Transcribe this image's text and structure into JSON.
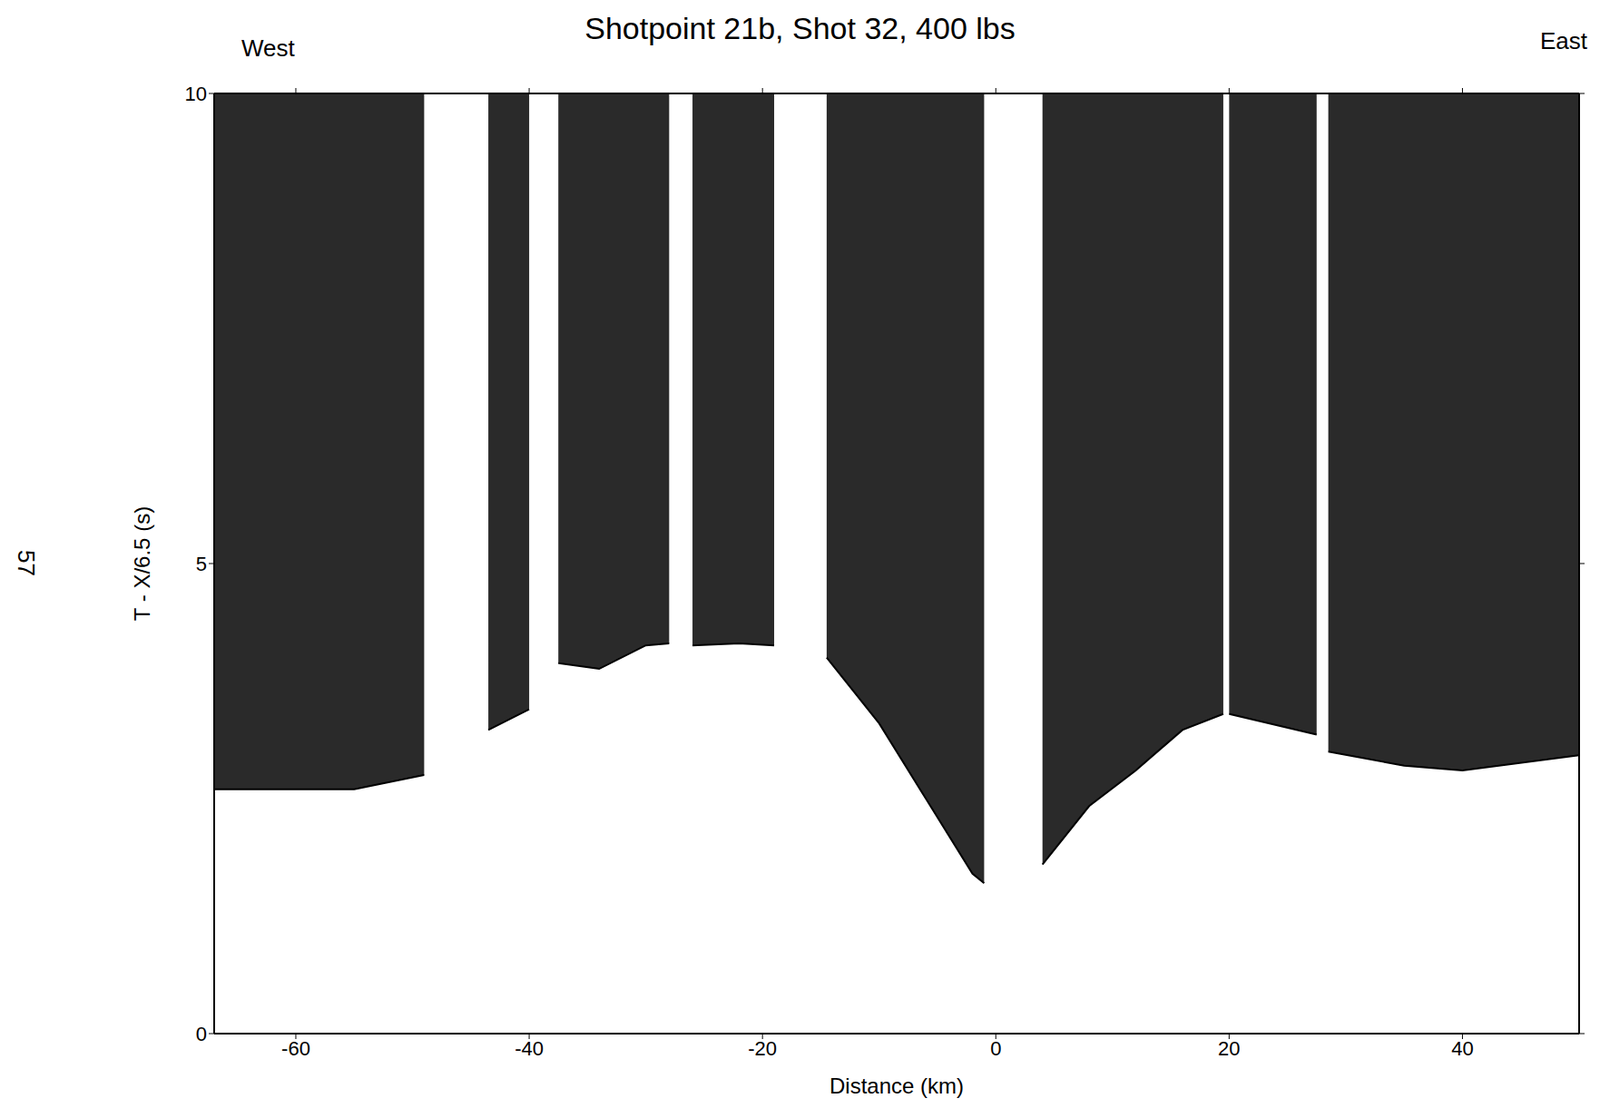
{
  "chart_data": {
    "type": "area",
    "title": "Shotpoint 21b, Shot 32, 400 lbs",
    "annotations": [
      "West",
      "East",
      "57"
    ],
    "x_label": "Distance (km)",
    "y_label": "T - X/6.5 (s)",
    "x": [
      -67,
      -60,
      -55,
      -49,
      -46,
      -43.5,
      -40,
      -38.5,
      -37.5,
      -34,
      -30,
      -28,
      -27,
      -26,
      -22,
      -19,
      -17,
      -14.5,
      -10,
      -6,
      -2,
      -1,
      1.5,
      4,
      8,
      12,
      16,
      19.5,
      19.8,
      20,
      27.5,
      28,
      28.5,
      35,
      40,
      50
    ],
    "values": [
      2.6,
      2.6,
      2.6,
      2.75,
      null,
      3.23,
      3.45,
      null,
      3.94,
      3.88,
      4.13,
      4.15,
      null,
      4.13,
      4.15,
      4.13,
      null,
      4.0,
      3.3,
      2.5,
      1.7,
      1.6,
      null,
      1.8,
      2.42,
      2.8,
      3.23,
      3.4,
      null,
      3.4,
      3.18,
      null,
      3.0,
      2.85,
      2.8,
      2.96
    ],
    "color": "#2a2a2a",
    "xlim": [
      -67,
      50
    ],
    "ylim": [
      0,
      10
    ],
    "xticks": [
      -60,
      -40,
      -20,
      0,
      20,
      40
    ],
    "yticks": [
      0,
      5,
      10
    ]
  }
}
